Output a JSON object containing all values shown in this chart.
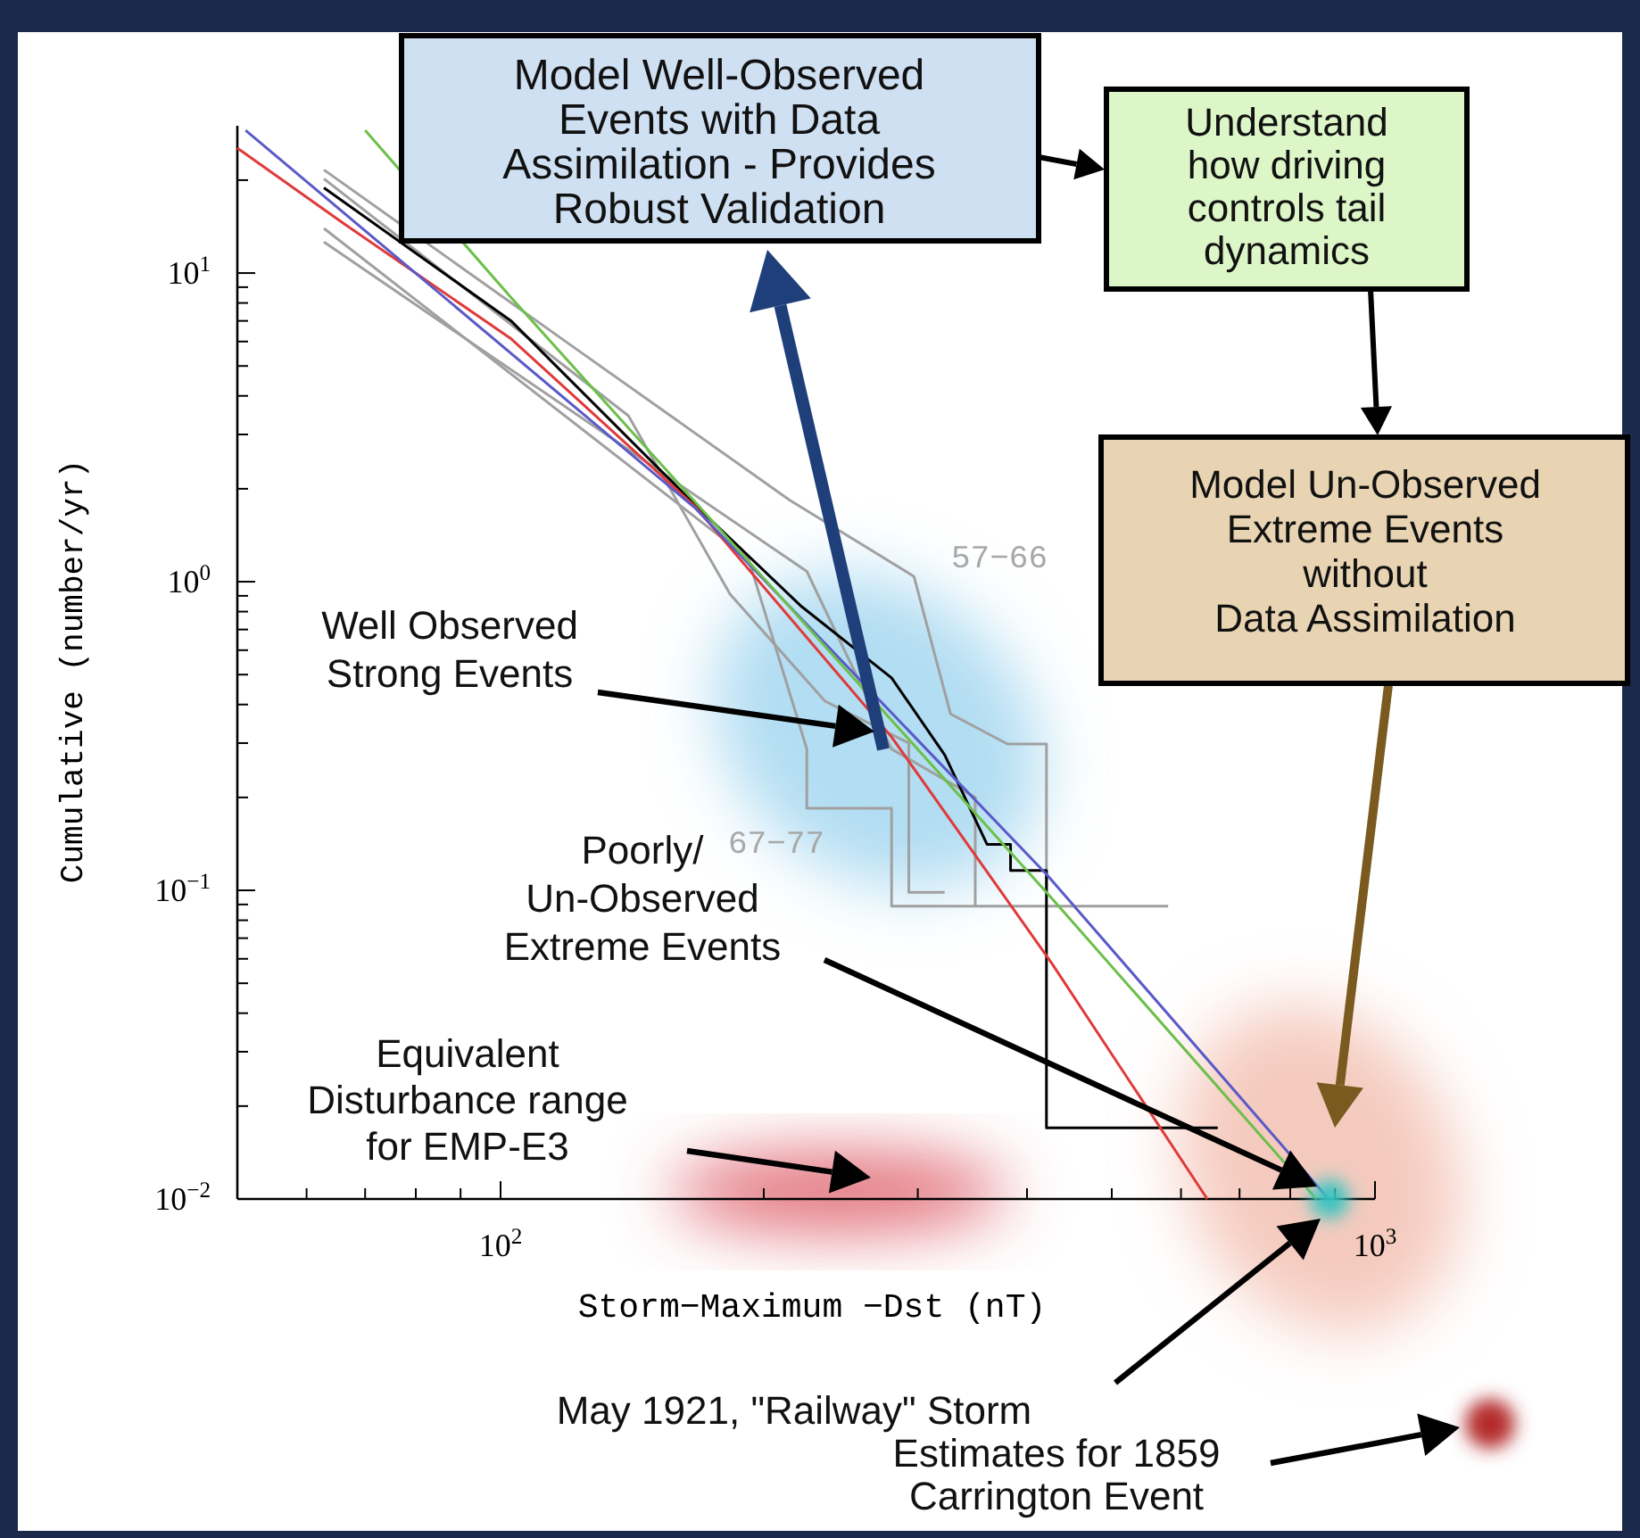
{
  "chart_data": {
    "type": "line",
    "xlabel": "Storm−Maximum −Dst (nT)",
    "ylabel": "Cumulative (number/yr)",
    "log": "xy",
    "grid": false,
    "marker": "none",
    "xlim": [
      50,
      1000
    ],
    "ylim": [
      0.01,
      30
    ],
    "xticks": [
      {
        "value": 60,
        "label": null
      },
      {
        "value": 70,
        "label": null
      },
      {
        "value": 80,
        "label": null
      },
      {
        "value": 90,
        "label": null
      },
      {
        "value": 100,
        "label": "10$^{2}$"
      },
      {
        "value": 200,
        "label": null
      },
      {
        "value": 300,
        "label": null
      },
      {
        "value": 400,
        "label": null
      },
      {
        "value": 500,
        "label": null
      },
      {
        "value": 600,
        "label": null
      },
      {
        "value": 700,
        "label": null
      },
      {
        "value": 800,
        "label": null
      },
      {
        "value": 900,
        "label": null
      },
      {
        "value": 1000,
        "label": "10$^{3}$"
      }
    ],
    "yticks": [
      {
        "value": 0.01,
        "label": "10$^{−2}$"
      },
      {
        "value": 0.02,
        "label": null
      },
      {
        "value": 0.03,
        "label": null
      },
      {
        "value": 0.04,
        "label": null
      },
      {
        "value": 0.05,
        "label": null
      },
      {
        "value": 0.06,
        "label": null
      },
      {
        "value": 0.07,
        "label": null
      },
      {
        "value": 0.08,
        "label": null
      },
      {
        "value": 0.09,
        "label": null
      },
      {
        "value": 0.1,
        "label": "10$^{−1}$"
      },
      {
        "value": 0.2,
        "label": null
      },
      {
        "value": 0.3,
        "label": null
      },
      {
        "value": 0.4,
        "label": null
      },
      {
        "value": 0.5,
        "label": null
      },
      {
        "value": 0.6,
        "label": null
      },
      {
        "value": 0.7,
        "label": null
      },
      {
        "value": 0.8,
        "label": null
      },
      {
        "value": 0.9,
        "label": null
      },
      {
        "value": 1,
        "label": "10$^{0}$"
      },
      {
        "value": 2,
        "label": null
      },
      {
        "value": 3,
        "label": null
      },
      {
        "value": 4,
        "label": null
      },
      {
        "value": 5,
        "label": null
      },
      {
        "value": 6,
        "label": null
      },
      {
        "value": 7,
        "label": null
      },
      {
        "value": 8,
        "label": null
      },
      {
        "value": 9,
        "label": null
      },
      {
        "value": 10,
        "label": "10$^{1}$"
      },
      {
        "value": 20,
        "label": null
      }
    ],
    "series": [
      {
        "color": "#a0a0a0",
        "x": [
          62.8,
          120,
          214,
          297,
          327,
          380,
          421,
          421
        ],
        "values": [
          21.6,
          5.87,
          1.84,
          1.04,
          0.373,
          0.298,
          0.298,
          0.0986
        ]
      },
      {
        "color": "#a0a0a0",
        "x": [
          62.8,
          140,
          183,
          235,
          293,
          293,
          322
        ],
        "values": [
          20.2,
          3.45,
          0.912,
          0.41,
          0.3,
          0.0986,
          0.0986
        ]
      },
      {
        "color": "#a0a0a0",
        "x": [
          62.8,
          192,
          224,
          224,
          280,
          280,
          580
        ],
        "values": [
          13.95,
          1.19,
          0.287,
          0.1845,
          0.1845,
          0.0888,
          0.0888
        ]
      },
      {
        "color": "#a0a0a0",
        "x": [
          62.8,
          224,
          280,
          349,
          349
        ],
        "values": [
          12.6,
          1.08,
          0.287,
          0.2,
          0.0888
        ]
      },
      {
        "color": "#000000",
        "x": [
          62.8,
          102.9,
          167,
          221,
          280,
          322,
          360,
          383,
          383,
          421,
          421,
          661
        ],
        "values": [
          18.9,
          6.98,
          1.77,
          0.83,
          0.488,
          0.275,
          0.141,
          0.141,
          0.116,
          0.116,
          0.017,
          0.017
        ]
      },
      {
        "color": "#e03a3a",
        "x": [
          50,
          66.1,
          102.9,
          167,
          280,
          427,
          643
        ],
        "values": [
          25.4,
          14.5,
          6.11,
          1.75,
          0.314,
          0.058,
          0.01
        ]
      },
      {
        "color": "#5a5ac8",
        "x": [
          51.1,
          167,
          421,
          885
        ],
        "values": [
          29,
          1.73,
          0.1128,
          0.01
        ]
      },
      {
        "color": "#6cc04a",
        "x": [
          70,
          102.9,
          421,
          857
        ],
        "values": [
          29,
          8.3,
          0.0986,
          0.01
        ]
      }
    ],
    "annotations": [
      "Model Well-Observed\nEvents with Data\nAssimilation - Provides\nRobust Validation",
      "Understand\nhow driving\ncontrols tail\ndynamics",
      "Model Un-Observed\nExtreme Events\nwithout\nData Assimilation",
      "57−66",
      "67−77",
      "Well Observed\nStrong Events",
      "Poorly/\nUn-Observed\nExtreme Events",
      "Equivalent\nDisturbance range\nfor EMP-E3",
      "May 1921, \"Railway\" Storm",
      "Estimates for 1859\nCarrington Event"
    ]
  }
}
